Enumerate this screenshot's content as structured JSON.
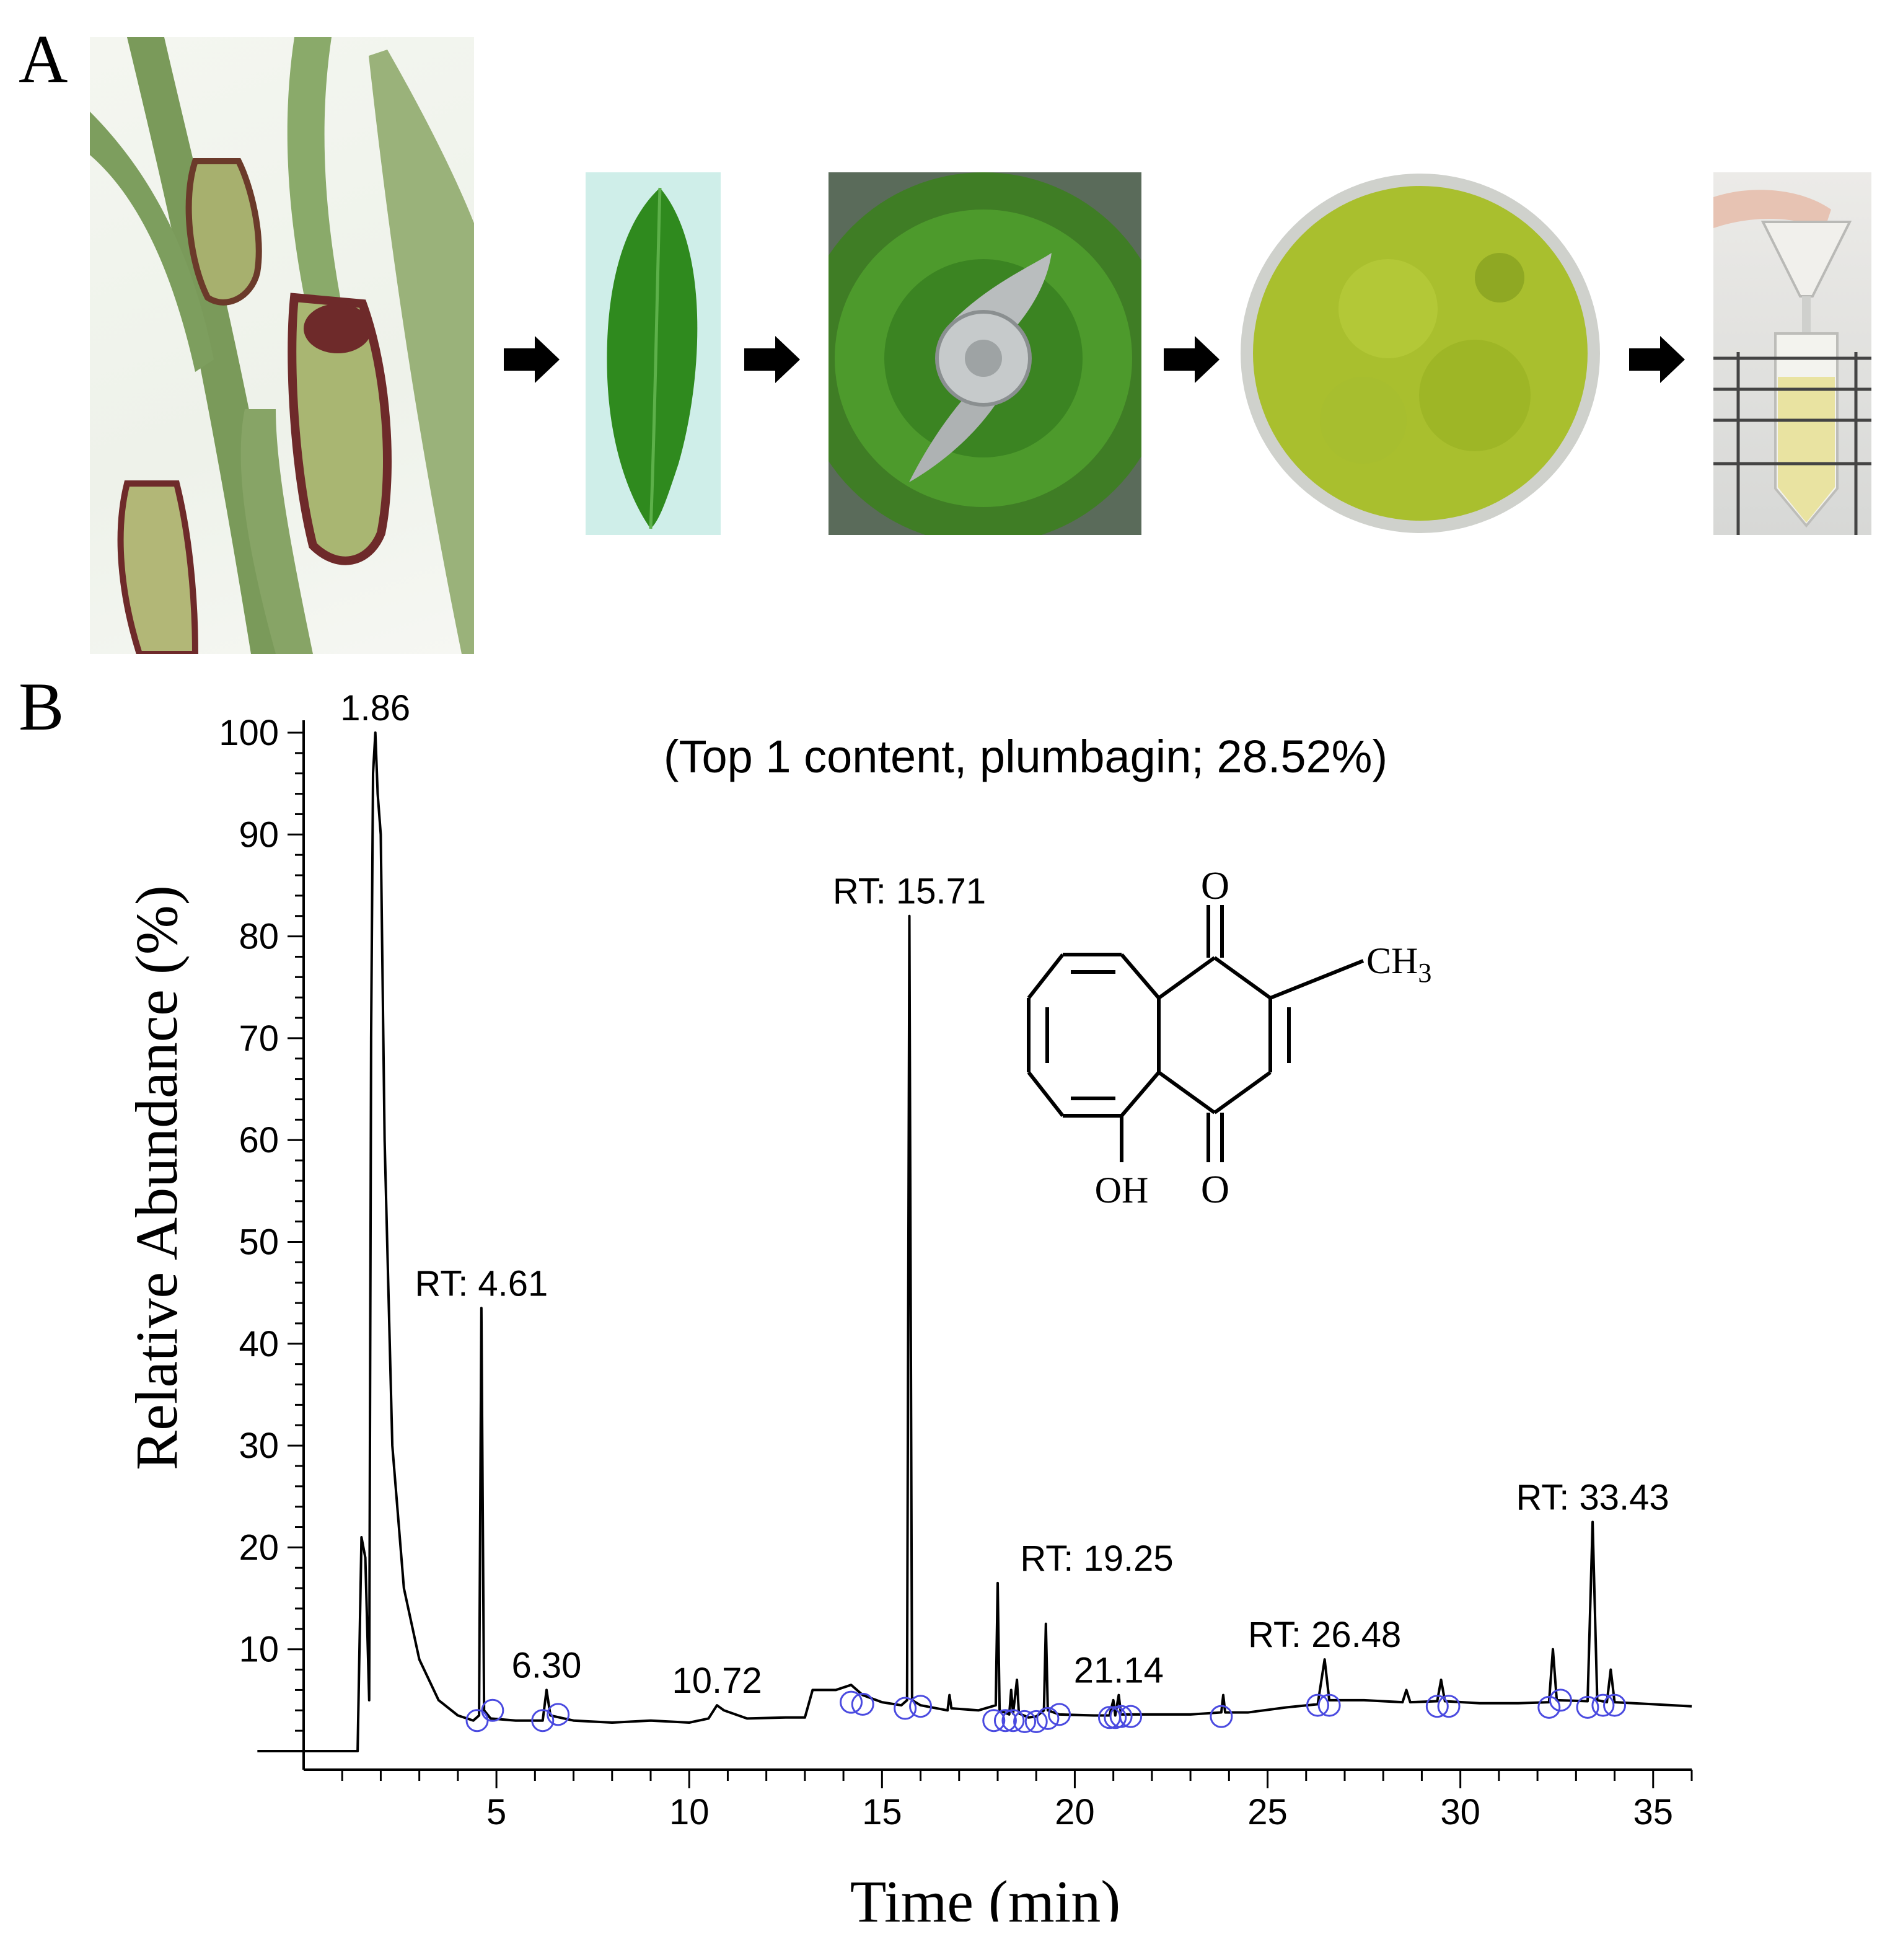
{
  "panels": {
    "a_label": "A",
    "b_label": "B"
  },
  "photos": [
    "nepenthes-plant-photo",
    "single-leaf-photo",
    "leaves-in-grinder-photo",
    "ground-leaf-powder-photo",
    "filtration-tube-photo"
  ],
  "chart_data": {
    "type": "line",
    "title": "(Top 1 content, plumbagin; 28.52%)",
    "xlabel": "Time (min)",
    "ylabel": "Relative Abundance (%)",
    "xlim": [
      0,
      36
    ],
    "ylim": [
      0,
      100
    ],
    "x_ticks": [
      5,
      10,
      15,
      20,
      25,
      30,
      35
    ],
    "y_ticks": [
      10,
      20,
      30,
      40,
      50,
      60,
      70,
      80,
      90,
      100
    ],
    "grid": false,
    "series": [
      {
        "color": "#000000",
        "points": [
          [
            -1.2,
            0.0
          ],
          [
            1.4,
            0.0
          ],
          [
            1.5,
            21.0
          ],
          [
            1.6,
            19.0
          ],
          [
            1.7,
            5.0
          ],
          [
            1.75,
            70.0
          ],
          [
            1.8,
            96.0
          ],
          [
            1.86,
            100.0
          ],
          [
            1.92,
            94.0
          ],
          [
            2.0,
            90.0
          ],
          [
            2.1,
            60.0
          ],
          [
            2.3,
            30.0
          ],
          [
            2.6,
            16.0
          ],
          [
            3.0,
            9.0
          ],
          [
            3.5,
            5.0
          ],
          [
            4.0,
            3.5
          ],
          [
            4.4,
            3.0
          ],
          [
            4.55,
            3.5
          ],
          [
            4.61,
            43.5
          ],
          [
            4.68,
            4.0
          ],
          [
            4.85,
            3.2
          ],
          [
            5.5,
            3.0
          ],
          [
            6.2,
            3.0
          ],
          [
            6.3,
            6.0
          ],
          [
            6.4,
            3.5
          ],
          [
            7.0,
            3.0
          ],
          [
            8.0,
            2.8
          ],
          [
            9.0,
            3.0
          ],
          [
            10.0,
            2.8
          ],
          [
            10.5,
            3.2
          ],
          [
            10.72,
            4.5
          ],
          [
            10.9,
            4.0
          ],
          [
            11.5,
            3.2
          ],
          [
            12.5,
            3.3
          ],
          [
            13.0,
            3.3
          ],
          [
            13.2,
            6.0
          ],
          [
            13.8,
            6.0
          ],
          [
            14.2,
            6.5
          ],
          [
            14.5,
            5.5
          ],
          [
            15.0,
            4.8
          ],
          [
            15.5,
            4.5
          ],
          [
            15.65,
            5.0
          ],
          [
            15.71,
            82.0
          ],
          [
            15.78,
            5.0
          ],
          [
            16.0,
            4.5
          ],
          [
            16.7,
            4.0
          ],
          [
            16.75,
            5.5
          ],
          [
            16.8,
            4.2
          ],
          [
            17.5,
            4.0
          ],
          [
            17.95,
            4.5
          ],
          [
            18.0,
            16.5
          ],
          [
            18.05,
            4.0
          ],
          [
            18.3,
            3.6
          ],
          [
            18.35,
            6.0
          ],
          [
            18.4,
            3.7
          ],
          [
            18.5,
            7.0
          ],
          [
            18.55,
            3.7
          ],
          [
            18.8,
            3.3
          ],
          [
            19.0,
            3.4
          ],
          [
            19.2,
            4.0
          ],
          [
            19.25,
            12.5
          ],
          [
            19.3,
            4.0
          ],
          [
            19.6,
            3.6
          ],
          [
            20.5,
            3.5
          ],
          [
            20.9,
            3.5
          ],
          [
            21.0,
            5.0
          ],
          [
            21.05,
            3.5
          ],
          [
            21.14,
            5.5
          ],
          [
            21.2,
            3.6
          ],
          [
            22.0,
            3.6
          ],
          [
            23.0,
            3.6
          ],
          [
            23.8,
            3.8
          ],
          [
            23.85,
            5.5
          ],
          [
            23.9,
            3.8
          ],
          [
            24.5,
            3.8
          ],
          [
            25.5,
            4.3
          ],
          [
            26.3,
            4.6
          ],
          [
            26.48,
            9.0
          ],
          [
            26.6,
            5.0
          ],
          [
            27.5,
            5.0
          ],
          [
            28.5,
            4.8
          ],
          [
            28.6,
            6.0
          ],
          [
            28.7,
            4.8
          ],
          [
            29.4,
            4.9
          ],
          [
            29.5,
            7.0
          ],
          [
            29.6,
            4.9
          ],
          [
            30.5,
            4.7
          ],
          [
            31.5,
            4.7
          ],
          [
            32.3,
            4.8
          ],
          [
            32.4,
            10.0
          ],
          [
            32.5,
            5.0
          ],
          [
            33.3,
            4.9
          ],
          [
            33.43,
            22.5
          ],
          [
            33.55,
            5.0
          ],
          [
            33.8,
            4.8
          ],
          [
            33.9,
            8.0
          ],
          [
            34.0,
            4.8
          ],
          [
            35.0,
            4.6
          ],
          [
            36.0,
            4.4
          ]
        ]
      }
    ],
    "peak_labels": [
      {
        "text": "1.86",
        "x": 1.86,
        "y": 100
      },
      {
        "text": "RT: 4.61",
        "x": 4.61,
        "y": 43.5
      },
      {
        "text": "6.30",
        "x": 6.3,
        "y": 6.0
      },
      {
        "text": "10.72",
        "x": 10.72,
        "y": 4.5
      },
      {
        "text": "RT: 15.71",
        "x": 15.71,
        "y": 82.0
      },
      {
        "text": "RT: 19.25",
        "x": 18.0,
        "y": 16.5
      },
      {
        "text": "21.14",
        "x": 21.14,
        "y": 5.5
      },
      {
        "text": "RT: 26.48",
        "x": 26.48,
        "y": 9.0
      },
      {
        "text": "RT: 33.43",
        "x": 33.43,
        "y": 22.5
      }
    ],
    "peak_markers": [
      {
        "x": 4.5,
        "y": 3.0
      },
      {
        "x": 4.9,
        "y": 4.0
      },
      {
        "x": 6.2,
        "y": 3.0
      },
      {
        "x": 6.6,
        "y": 3.6
      },
      {
        "x": 14.2,
        "y": 4.8
      },
      {
        "x": 14.5,
        "y": 4.6
      },
      {
        "x": 15.6,
        "y": 4.2
      },
      {
        "x": 16.0,
        "y": 4.4
      },
      {
        "x": 17.9,
        "y": 3.0
      },
      {
        "x": 18.2,
        "y": 3.0
      },
      {
        "x": 18.4,
        "y": 3.0
      },
      {
        "x": 18.7,
        "y": 2.9
      },
      {
        "x": 19.0,
        "y": 2.9
      },
      {
        "x": 19.3,
        "y": 3.2
      },
      {
        "x": 19.6,
        "y": 3.6
      },
      {
        "x": 20.9,
        "y": 3.3
      },
      {
        "x": 21.05,
        "y": 3.3
      },
      {
        "x": 21.2,
        "y": 3.4
      },
      {
        "x": 21.45,
        "y": 3.4
      },
      {
        "x": 23.8,
        "y": 3.4
      },
      {
        "x": 26.3,
        "y": 4.5
      },
      {
        "x": 26.6,
        "y": 4.5
      },
      {
        "x": 29.4,
        "y": 4.4
      },
      {
        "x": 29.7,
        "y": 4.4
      },
      {
        "x": 32.3,
        "y": 4.3
      },
      {
        "x": 32.6,
        "y": 5.0
      },
      {
        "x": 33.3,
        "y": 4.3
      },
      {
        "x": 33.7,
        "y": 4.5
      },
      {
        "x": 34.0,
        "y": 4.5
      }
    ],
    "structure": {
      "o_top": "O",
      "o_bottom": "O",
      "ch3_main": "CH",
      "ch3_sub": "3",
      "oh": "OH"
    }
  }
}
